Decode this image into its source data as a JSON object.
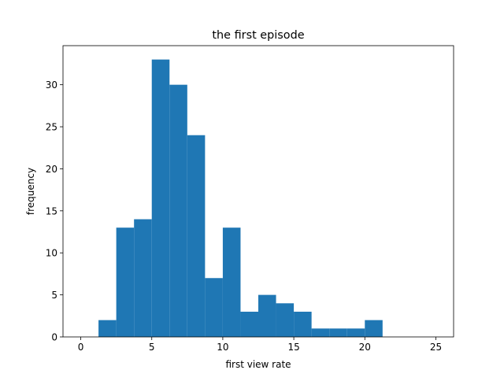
{
  "chart_data": {
    "type": "bar",
    "title": "the first episode",
    "xlabel": "first view rate",
    "ylabel": "frequency",
    "xlim": [
      -1.25,
      26.25
    ],
    "ylim": [
      0,
      34.65
    ],
    "xticks": [
      0,
      5,
      10,
      15,
      20,
      25
    ],
    "yticks": [
      0,
      5,
      10,
      15,
      20,
      25,
      30
    ],
    "bin_edges": [
      1.25,
      2.5,
      3.75,
      5.0,
      6.25,
      7.5,
      8.75,
      10.0,
      11.25,
      12.5,
      13.75,
      15.0,
      16.25,
      17.5,
      18.75,
      20.0,
      21.25
    ],
    "counts": [
      2,
      13,
      14,
      33,
      30,
      24,
      7,
      13,
      3,
      5,
      4,
      3,
      1,
      1,
      1,
      2
    ],
    "bar_color": "#1f77b4",
    "grid": false
  }
}
